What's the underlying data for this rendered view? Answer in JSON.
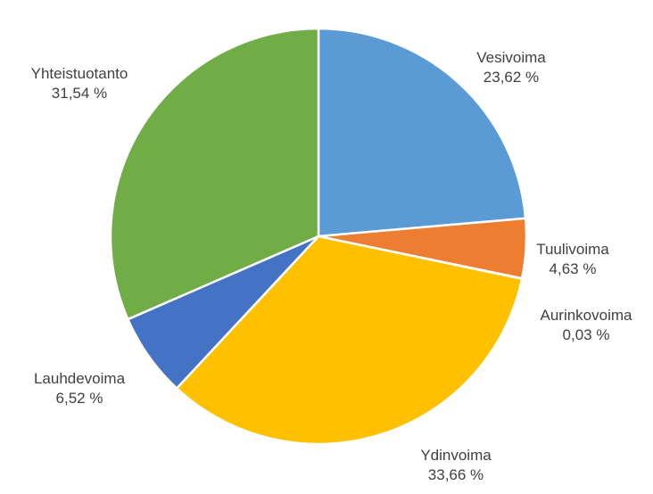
{
  "chart_data": {
    "type": "pie",
    "slices": [
      {
        "label": "Vesivoima",
        "value": 23.62,
        "value_label": "23,62 %",
        "color": "#5B9BD5"
      },
      {
        "label": "Tuulivoima",
        "value": 4.63,
        "value_label": "4,63 %",
        "color": "#ED7D31"
      },
      {
        "label": "Aurinkovoima",
        "value": 0.03,
        "value_label": "0,03 %",
        "color": "#A5A5A5"
      },
      {
        "label": "Ydinvoima",
        "value": 33.66,
        "value_label": "33,66 %",
        "color": "#FFC000"
      },
      {
        "label": "Lauhdevoima",
        "value": 6.52,
        "value_label": "6,52 %",
        "color": "#4472C4"
      },
      {
        "label": "Yhteistuotanto",
        "value": 31.54,
        "value_label": "31,54 %",
        "color": "#70AD47"
      }
    ],
    "start_angle": "12 o'clock",
    "direction": "clockwise",
    "legend": "none",
    "data_labels": "outside"
  }
}
